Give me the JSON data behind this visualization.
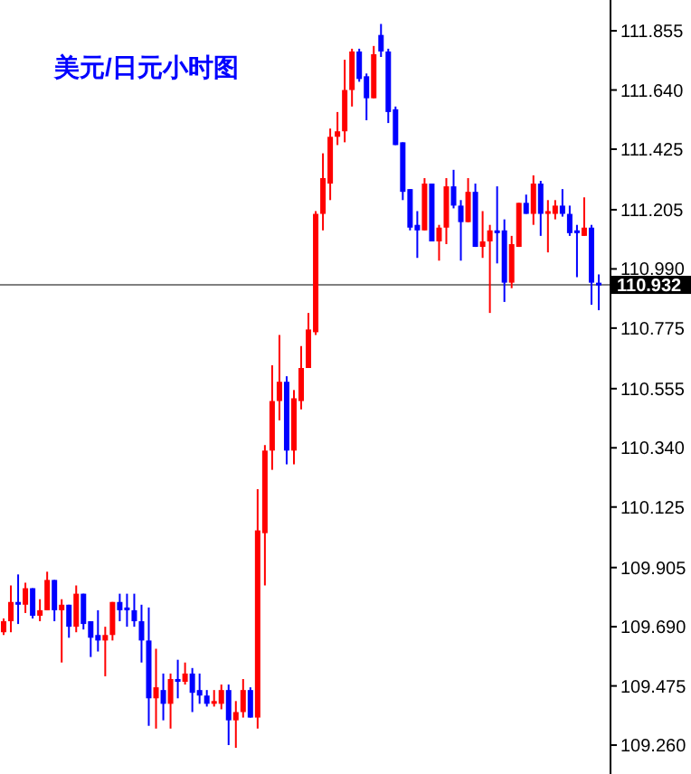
{
  "chart_data": {
    "type": "candlestick",
    "title": "美元/日元小时图",
    "categories": [
      null,
      null,
      null,
      null,
      null,
      null,
      null,
      null,
      null,
      null,
      null,
      null,
      null,
      null,
      null,
      null,
      null,
      null,
      null,
      null,
      null,
      null,
      null,
      null,
      null,
      null,
      null,
      null,
      null,
      null,
      null,
      null,
      null,
      null,
      null,
      null,
      null,
      null,
      null,
      null,
      null,
      null,
      null,
      null,
      null,
      null,
      null,
      null,
      null,
      null,
      null,
      null,
      null,
      null,
      null,
      null,
      null,
      null,
      null,
      null,
      null,
      null,
      null,
      null,
      null,
      null,
      null,
      null,
      null,
      null,
      null,
      null,
      null,
      null,
      null,
      null,
      null,
      null,
      null,
      null,
      null,
      null,
      null
    ],
    "ohlc": [
      [
        109.67,
        109.72,
        109.66,
        109.71
      ],
      [
        109.71,
        109.84,
        109.67,
        109.78
      ],
      [
        109.78,
        109.88,
        109.7,
        109.77
      ],
      [
        109.77,
        109.85,
        109.74,
        109.83
      ],
      [
        109.83,
        109.83,
        109.72,
        109.73
      ],
      [
        109.73,
        109.79,
        109.71,
        109.75
      ],
      [
        109.75,
        109.89,
        109.75,
        109.86
      ],
      [
        109.86,
        109.86,
        109.71,
        109.75
      ],
      [
        109.75,
        109.79,
        109.56,
        109.77
      ],
      [
        109.77,
        109.77,
        109.65,
        109.69
      ],
      [
        109.69,
        109.84,
        109.67,
        109.81
      ],
      [
        109.81,
        109.81,
        109.68,
        109.7
      ],
      [
        109.71,
        109.71,
        109.58,
        109.65
      ],
      [
        109.66,
        109.75,
        109.6,
        109.64
      ],
      [
        109.64,
        109.69,
        109.51,
        109.66
      ],
      [
        109.66,
        109.78,
        109.64,
        109.78
      ],
      [
        109.78,
        109.81,
        109.71,
        109.75
      ],
      [
        109.76,
        109.81,
        109.69,
        109.75
      ],
      [
        109.75,
        109.81,
        109.69,
        109.71
      ],
      [
        109.71,
        109.77,
        109.56,
        109.64
      ],
      [
        109.64,
        109.76,
        109.33,
        109.43
      ],
      [
        109.43,
        109.61,
        109.32,
        109.47
      ],
      [
        109.46,
        109.52,
        109.35,
        109.41
      ],
      [
        109.41,
        109.52,
        109.32,
        109.5
      ],
      [
        109.5,
        109.57,
        109.43,
        109.49
      ],
      [
        109.49,
        109.56,
        109.48,
        109.52
      ],
      [
        109.52,
        109.54,
        109.38,
        109.45
      ],
      [
        109.46,
        109.52,
        109.41,
        109.44
      ],
      [
        109.44,
        109.46,
        109.4,
        109.41
      ],
      [
        109.41,
        109.46,
        109.4,
        109.42
      ],
      [
        109.41,
        109.48,
        109.39,
        109.46
      ],
      [
        109.46,
        109.48,
        109.26,
        109.35
      ],
      [
        109.35,
        109.42,
        109.25,
        109.38
      ],
      [
        109.38,
        109.5,
        109.36,
        109.46
      ],
      [
        109.46,
        109.47,
        109.36,
        109.36
      ],
      [
        109.36,
        110.19,
        109.32,
        110.04
      ],
      [
        110.03,
        110.35,
        109.84,
        110.33
      ],
      [
        110.33,
        110.64,
        110.26,
        110.51
      ],
      [
        110.51,
        110.75,
        110.44,
        110.58
      ],
      [
        110.58,
        110.6,
        110.28,
        110.33
      ],
      [
        110.33,
        110.55,
        110.28,
        110.52
      ],
      [
        110.51,
        110.71,
        110.48,
        110.63
      ],
      [
        110.63,
        110.83,
        110.63,
        110.77
      ],
      [
        110.76,
        111.2,
        110.75,
        111.19
      ],
      [
        111.19,
        111.41,
        111.13,
        111.32
      ],
      [
        111.3,
        111.5,
        111.24,
        111.47
      ],
      [
        111.47,
        111.56,
        111.44,
        111.49
      ],
      [
        111.49,
        111.75,
        111.45,
        111.64
      ],
      [
        111.64,
        111.79,
        111.58,
        111.78
      ],
      [
        111.78,
        111.79,
        111.67,
        111.68
      ],
      [
        111.69,
        111.7,
        111.53,
        111.61
      ],
      [
        111.61,
        111.8,
        111.61,
        111.77
      ],
      [
        111.84,
        111.88,
        111.76,
        111.78
      ],
      [
        111.78,
        111.79,
        111.52,
        111.56
      ],
      [
        111.57,
        111.58,
        111.44,
        111.44
      ],
      [
        111.45,
        111.45,
        111.24,
        111.27
      ],
      [
        111.28,
        111.28,
        111.13,
        111.14
      ],
      [
        111.15,
        111.2,
        111.03,
        111.13
      ],
      [
        111.13,
        111.32,
        111.13,
        111.3
      ],
      [
        111.3,
        111.3,
        111.09,
        111.09
      ],
      [
        111.09,
        111.15,
        111.02,
        111.14
      ],
      [
        111.14,
        111.32,
        111.08,
        111.29
      ],
      [
        111.29,
        111.35,
        111.21,
        111.22
      ],
      [
        111.22,
        111.24,
        111.02,
        111.16
      ],
      [
        111.16,
        111.32,
        111.16,
        111.27
      ],
      [
        111.27,
        111.3,
        111.07,
        111.07
      ],
      [
        111.07,
        111.2,
        111.03,
        111.09
      ],
      [
        111.09,
        111.15,
        110.83,
        111.13
      ],
      [
        111.13,
        111.29,
        111.01,
        111.12
      ],
      [
        111.13,
        111.17,
        110.87,
        110.94
      ],
      [
        110.94,
        111.11,
        110.92,
        111.08
      ],
      [
        111.07,
        111.23,
        111.07,
        111.23
      ],
      [
        111.23,
        111.26,
        111.19,
        111.19
      ],
      [
        111.19,
        111.33,
        111.15,
        111.3
      ],
      [
        111.3,
        111.31,
        111.11,
        111.19
      ],
      [
        111.19,
        111.24,
        111.05,
        111.2
      ],
      [
        111.19,
        111.24,
        111.17,
        111.22
      ],
      [
        111.22,
        111.28,
        111.18,
        111.19
      ],
      [
        111.19,
        111.22,
        111.11,
        111.12
      ],
      [
        111.13,
        111.15,
        110.96,
        111.12
      ],
      [
        111.11,
        111.25,
        111.11,
        111.14
      ],
      [
        111.14,
        111.15,
        110.86,
        110.94
      ],
      [
        110.94,
        110.97,
        110.84,
        110.93
      ]
    ],
    "colors": [
      "#ff0000",
      "#ff0000",
      "#0000ff",
      "#ff0000",
      "#0000ff",
      "#ff0000",
      "#ff0000",
      "#0000ff",
      "#ff0000",
      "#0000ff",
      "#ff0000",
      "#0000ff",
      "#0000ff",
      "#0000ff",
      "#ff0000",
      "#ff0000",
      "#0000ff",
      "#0000ff",
      "#0000ff",
      "#0000ff",
      "#0000ff",
      "#ff0000",
      "#0000ff",
      "#ff0000",
      "#0000ff",
      "#ff0000",
      "#0000ff",
      "#0000ff",
      "#0000ff",
      "#ff0000",
      "#ff0000",
      "#0000ff",
      "#ff0000",
      "#ff0000",
      "#0000ff",
      "#ff0000",
      "#ff0000",
      "#ff0000",
      "#ff0000",
      "#0000ff",
      "#ff0000",
      "#ff0000",
      "#ff0000",
      "#ff0000",
      "#ff0000",
      "#ff0000",
      "#ff0000",
      "#ff0000",
      "#ff0000",
      "#0000ff",
      "#0000ff",
      "#ff0000",
      "#0000ff",
      "#0000ff",
      "#0000ff",
      "#0000ff",
      "#0000ff",
      "#0000ff",
      "#ff0000",
      "#0000ff",
      "#ff0000",
      "#ff0000",
      "#0000ff",
      "#0000ff",
      "#ff0000",
      "#0000ff",
      "#ff0000",
      "#ff0000",
      "#0000ff",
      "#0000ff",
      "#ff0000",
      "#ff0000",
      "#0000ff",
      "#ff0000",
      "#0000ff",
      "#ff0000",
      "#ff0000",
      "#0000ff",
      "#0000ff",
      "#0000ff",
      "#ff0000",
      "#0000ff",
      "#0000ff"
    ],
    "ylim": [
      109.155,
      111.967
    ],
    "yticks": [
      111.855,
      {
        "value": 111.64,
        "label": "111.640"
      },
      {
        "value": 111.425,
        "label": "111.425"
      },
      111.205,
      {
        "value": 110.99,
        "label": "110.990"
      },
      110.775,
      110.555,
      {
        "value": 110.34,
        "label": "110.340"
      },
      110.125,
      109.905,
      {
        "value": 109.69,
        "label": "109.690"
      },
      109.475,
      {
        "value": 109.26,
        "label": "109.260"
      }
    ],
    "ref_lines": [
      {
        "axis": "y",
        "value": 110.932,
        "label": "110.932",
        "color": "#808080"
      }
    ],
    "grid": false
  }
}
